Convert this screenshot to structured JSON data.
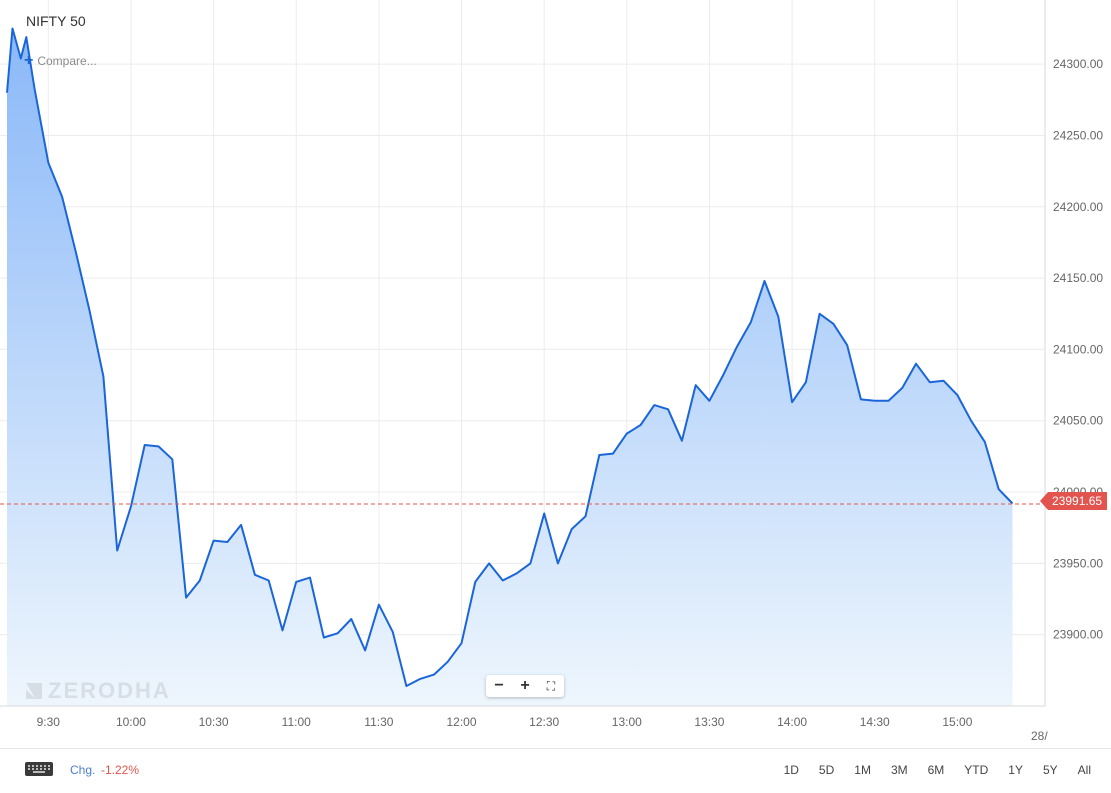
{
  "symbol": {
    "name": "NIFTY 50",
    "compare_label": "Compare..."
  },
  "watermark": {
    "text": "ZERODHA"
  },
  "last_price": {
    "label": "23991.65",
    "value": 23991.65,
    "color": "#e4544f"
  },
  "footer": {
    "change_label": "Chg.",
    "change_value": "-1.22%",
    "ranges": [
      "1D",
      "5D",
      "1M",
      "3M",
      "6M",
      "YTD",
      "1Y",
      "5Y",
      "All"
    ]
  },
  "colors": {
    "line": "#1a66d8",
    "fill_top": "#8ab8f8",
    "fill_bottom": "#eef6fd",
    "grid": "#ececec",
    "price_line": "#e4544f"
  },
  "icons": {
    "keyboard": "keyboard-icon",
    "zoom_out": "minus-icon",
    "zoom_in": "plus-icon",
    "fullscreen": "fullscreen-icon",
    "compare": "plus-icon"
  },
  "chart_data": {
    "type": "area",
    "title": "NIFTY 50",
    "xlabel": "",
    "ylabel": "",
    "x_ticks": [
      {
        "t": "9:30",
        "label": "9:30"
      },
      {
        "t": "10:00",
        "label": "10:00"
      },
      {
        "t": "10:30",
        "label": "10:30"
      },
      {
        "t": "11:00",
        "label": "11:00"
      },
      {
        "t": "11:30",
        "label": "11:30"
      },
      {
        "t": "12:00",
        "label": "12:00"
      },
      {
        "t": "12:30",
        "label": "12:30"
      },
      {
        "t": "13:00",
        "label": "13:00"
      },
      {
        "t": "13:30",
        "label": "13:30"
      },
      {
        "t": "14:00",
        "label": "14:00"
      },
      {
        "t": "14:30",
        "label": "14:30"
      },
      {
        "t": "15:00",
        "label": "15:00"
      }
    ],
    "x_end_label": "28/",
    "y_ticks": [
      23900,
      23950,
      24000,
      24050,
      24100,
      24150,
      24200,
      24250,
      24300
    ],
    "y_tick_labels": [
      "23900.00",
      "23950.00",
      "24000.00",
      "24050.00",
      "24100.00",
      "24150.00",
      "24200.00",
      "24250.00",
      "24300.00"
    ],
    "xlim": [
      "9:15",
      "15:30"
    ],
    "ylim": [
      23850,
      24345
    ],
    "grid": true,
    "series": [
      {
        "points": [
          [
            "9:15",
            24280
          ],
          [
            "9:17",
            24325
          ],
          [
            "9:20",
            24304
          ],
          [
            "9:22",
            24319
          ],
          [
            "9:25",
            24283
          ],
          [
            "9:30",
            24231
          ],
          [
            "9:35",
            24207
          ],
          [
            "9:40",
            24168
          ],
          [
            "9:45",
            24127
          ],
          [
            "9:50",
            24081
          ],
          [
            "9:55",
            23959
          ],
          [
            "10:00",
            23990
          ],
          [
            "10:05",
            24033
          ],
          [
            "10:10",
            24032
          ],
          [
            "10:15",
            24023
          ],
          [
            "10:20",
            23926
          ],
          [
            "10:25",
            23938
          ],
          [
            "10:30",
            23966
          ],
          [
            "10:35",
            23965
          ],
          [
            "10:40",
            23977
          ],
          [
            "10:45",
            23942
          ],
          [
            "10:50",
            23938
          ],
          [
            "10:55",
            23903
          ],
          [
            "11:00",
            23937
          ],
          [
            "11:05",
            23940
          ],
          [
            "11:10",
            23898
          ],
          [
            "11:15",
            23901
          ],
          [
            "11:20",
            23911
          ],
          [
            "11:25",
            23889
          ],
          [
            "11:30",
            23921
          ],
          [
            "11:35",
            23902
          ],
          [
            "11:40",
            23864
          ],
          [
            "11:45",
            23869
          ],
          [
            "11:50",
            23872
          ],
          [
            "11:55",
            23881
          ],
          [
            "12:00",
            23894
          ],
          [
            "12:05",
            23937
          ],
          [
            "12:10",
            23950
          ],
          [
            "12:15",
            23938
          ],
          [
            "12:20",
            23943
          ],
          [
            "12:25",
            23950
          ],
          [
            "12:30",
            23985
          ],
          [
            "12:35",
            23950
          ],
          [
            "12:40",
            23974
          ],
          [
            "12:45",
            23983
          ],
          [
            "12:50",
            24026
          ],
          [
            "12:55",
            24027
          ],
          [
            "13:00",
            24041
          ],
          [
            "13:05",
            24047
          ],
          [
            "13:10",
            24061
          ],
          [
            "13:15",
            24058
          ],
          [
            "13:20",
            24036
          ],
          [
            "13:25",
            24075
          ],
          [
            "13:30",
            24064
          ],
          [
            "13:35",
            24082
          ],
          [
            "13:40",
            24102
          ],
          [
            "13:45",
            24119
          ],
          [
            "13:50",
            24148
          ],
          [
            "13:55",
            24123
          ],
          [
            "14:00",
            24063
          ],
          [
            "14:05",
            24077
          ],
          [
            "14:10",
            24125
          ],
          [
            "14:15",
            24118
          ],
          [
            "14:20",
            24103
          ],
          [
            "14:25",
            24065
          ],
          [
            "14:30",
            24064
          ],
          [
            "14:35",
            24064
          ],
          [
            "14:40",
            24073
          ],
          [
            "14:45",
            24090
          ],
          [
            "14:50",
            24077
          ],
          [
            "14:55",
            24078
          ],
          [
            "15:00",
            24068
          ],
          [
            "15:05",
            24050
          ],
          [
            "15:10",
            24035
          ],
          [
            "15:15",
            24002
          ],
          [
            "15:20",
            23992
          ]
        ]
      }
    ]
  }
}
